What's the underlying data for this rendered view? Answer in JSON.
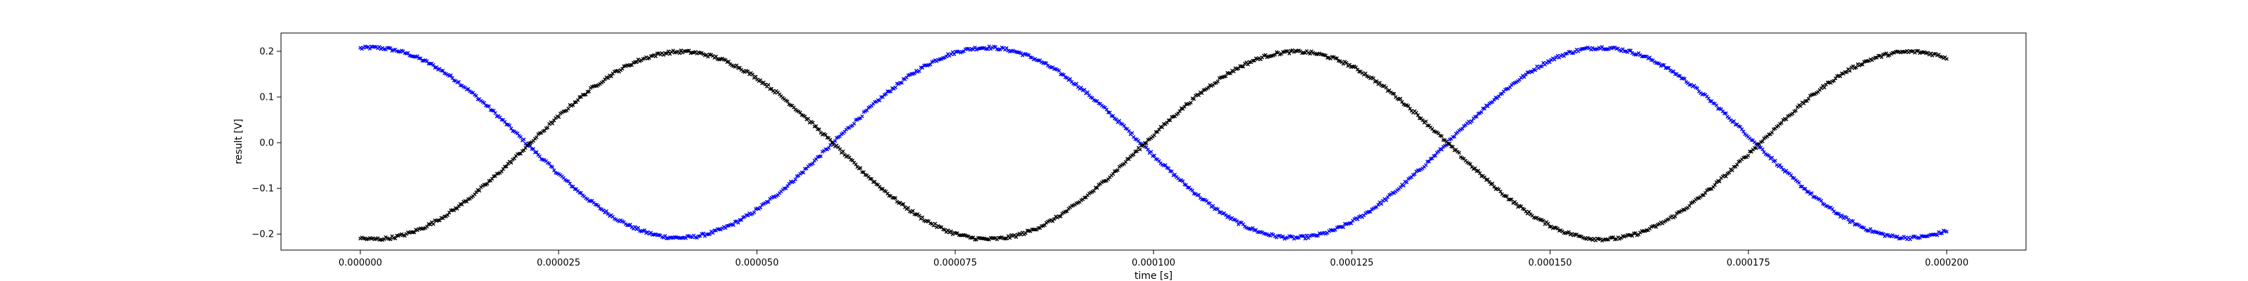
{
  "chart_data": {
    "type": "scatter",
    "title": "",
    "xlabel": "time [s]",
    "ylabel": "result [V]",
    "xlim": [
      -1e-05,
      0.00021
    ],
    "ylim": [
      -0.235,
      0.24
    ],
    "x_ticks": [
      0.0,
      2.5e-05,
      5e-05,
      7.5e-05,
      0.0001,
      0.000125,
      0.00015,
      0.000175,
      0.0002
    ],
    "x_tick_labels": [
      "0.000000",
      "0.000025",
      "0.000050",
      "0.000075",
      "0.000100",
      "0.000125",
      "0.000150",
      "0.000175",
      "0.000200"
    ],
    "y_ticks": [
      -0.2,
      -0.1,
      0.0,
      0.1,
      0.2
    ],
    "y_tick_labels": [
      "−0.2",
      "−0.1",
      "0.0",
      "0.1",
      "0.2"
    ],
    "grid": false,
    "series": [
      {
        "color": "#0000ff",
        "marker": "x",
        "x_range": [
          0.0,
          0.0002
        ],
        "amplitude": 0.208,
        "offset": 0.0,
        "period": 7.75e-05,
        "peak_time": 1.5e-06,
        "points": 1000
      },
      {
        "color": "#000000",
        "marker": "x",
        "x_range": [
          0.0,
          0.0002
        ],
        "amplitude": 0.205,
        "offset": -0.006,
        "period": 7.75e-05,
        "peak_time": 4.05e-05,
        "points": 1000
      }
    ]
  }
}
